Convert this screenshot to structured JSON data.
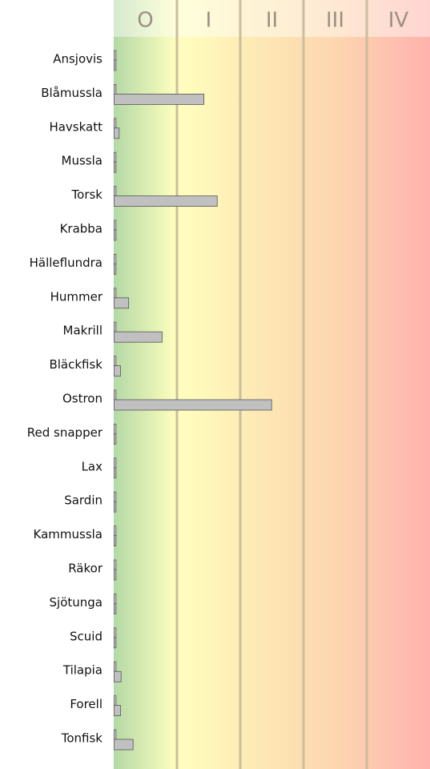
{
  "chart_data": {
    "type": "bar",
    "orientation": "horizontal",
    "zones": [
      "O",
      "I",
      "II",
      "III",
      "IV"
    ],
    "categories": [
      "Ansjovis",
      "Blåmussla",
      "Havskatt",
      "Mussla",
      "Torsk",
      "Krabba",
      "Hälleflundra",
      "Hummer",
      "Makrill",
      "Bläckfisk",
      "Ostron",
      "Red snapper",
      "Lax",
      "Sardin",
      "Kammussla",
      "Räkor",
      "Sjötunga",
      "Scuid",
      "Tilapia",
      "Forell",
      "Tonfisk"
    ],
    "series": [
      {
        "color": "#cfcfcf",
        "values": [
          0.03,
          0.03,
          0.03,
          0.03,
          0.03,
          0.03,
          0.03,
          0.03,
          0.03,
          0.03,
          0.03,
          0.03,
          0.03,
          0.03,
          0.03,
          0.03,
          0.03,
          0.03,
          0.03,
          0.03,
          0.03
        ]
      },
      {
        "color": "#c0c0c0",
        "values": [
          0.03,
          1.42,
          0.08,
          0.03,
          1.63,
          0.03,
          0.03,
          0.23,
          0.76,
          0.1,
          2.49,
          0.03,
          0.03,
          0.03,
          0.03,
          0.03,
          0.03,
          0.03,
          0.11,
          0.1,
          0.3
        ]
      }
    ],
    "xlim": [
      0,
      5
    ],
    "xticks": [
      1,
      2,
      3,
      4
    ],
    "grid": true
  }
}
